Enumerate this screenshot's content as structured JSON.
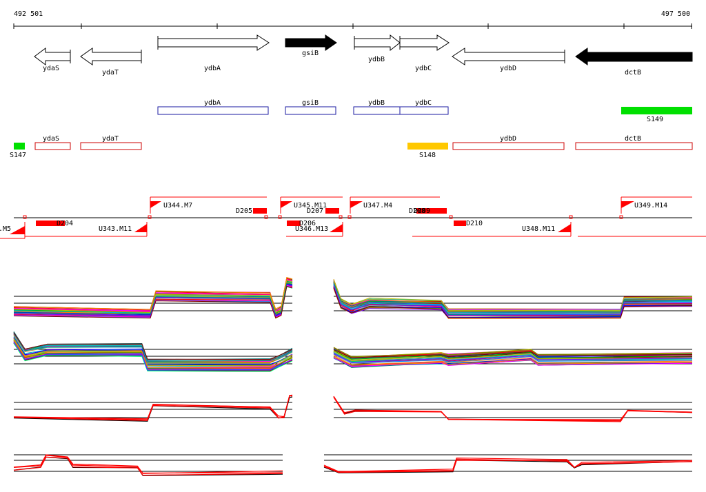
{
  "coordinates": {
    "start": "492 501",
    "end": "497 500"
  },
  "genes": [
    {
      "name": "ydaS",
      "strand": "-",
      "filled": false
    },
    {
      "name": "ydaT",
      "strand": "-",
      "filled": false
    },
    {
      "name": "ydbA",
      "strand": "+",
      "filled": false
    },
    {
      "name": "gsiB",
      "strand": "+",
      "filled": true
    },
    {
      "name": "ydbB",
      "strand": "+",
      "filled": false
    },
    {
      "name": "ydbC",
      "strand": "+",
      "filled": false
    },
    {
      "name": "ydbD",
      "strand": "-",
      "filled": false
    },
    {
      "name": "dctB",
      "strand": "-",
      "filled": true
    }
  ],
  "forward_boxes": [
    "ydbA",
    "gsiB",
    "ydbB",
    "ydbC"
  ],
  "reverse_boxes": [
    "ydaS",
    "ydaT",
    "ydbD",
    "dctB"
  ],
  "markers": [
    {
      "label": "S147",
      "color": "#00e000"
    },
    {
      "label": "S148",
      "color": "#ffc800"
    },
    {
      "label": "S149",
      "color": "#00e000"
    }
  ],
  "utr_labels": [
    "U344.M7",
    "U345.M11",
    "U347.M4",
    "U349.M14",
    "U343.M11",
    "U346.M13",
    "U348.M11",
    ".M5"
  ],
  "d_labels": [
    "D204",
    "D205",
    "D206",
    "D207",
    "D208",
    "D209",
    "D210"
  ],
  "colors": {
    "forward_box": "#1a1aa0",
    "reverse_box": "#cc0000",
    "feature_red": "#ff0000"
  }
}
